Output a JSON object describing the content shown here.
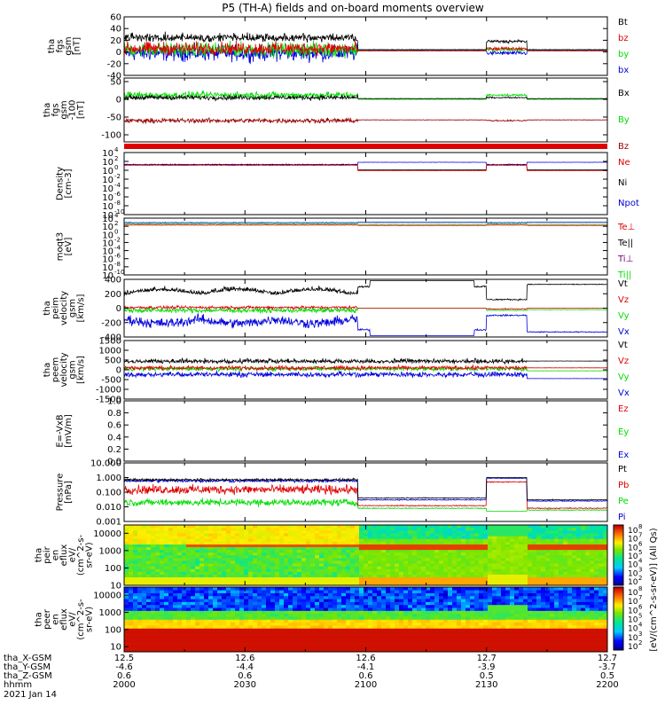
{
  "title": "P5 (TH-A) fields and on-board moments overview",
  "colors": {
    "black": "#000000",
    "red": "#e00000",
    "green": "#00dd00",
    "blue": "#0000dd",
    "darkred": "#990000",
    "purple": "#800080"
  },
  "chart_data": [
    {
      "type": "line",
      "name": "fgs-gsm",
      "ylabel": [
        "tha",
        "fgs",
        "gsm",
        "[nT]"
      ],
      "ylim": [
        -40,
        60
      ],
      "yticks": [
        "60",
        "40",
        "20",
        "0",
        "-20",
        "-40"
      ],
      "yticks_values": [
        60,
        40,
        20,
        0,
        -20,
        -40
      ],
      "legend": [
        {
          "text": "Bt",
          "color": "#000000"
        },
        {
          "text": "bz",
          "color": "#e00000"
        },
        {
          "text": "by",
          "color": "#00dd00"
        },
        {
          "text": "bx",
          "color": "#0000dd"
        }
      ]
    },
    {
      "type": "line",
      "name": "fgs-gsm-offset",
      "ylabel": [
        "tha",
        "fgs",
        "gsm",
        "-100",
        "[nT]"
      ],
      "ylim": [
        -120,
        60
      ],
      "yticks": [
        "50",
        "0",
        "-50",
        "-100"
      ],
      "yticks_values": [
        50,
        0,
        -50,
        -100
      ],
      "legend": [
        {
          "text": "Bx",
          "color": "#000000"
        },
        {
          "text": "By",
          "color": "#00dd00"
        },
        {
          "text": "Bz",
          "color": "#990000"
        }
      ]
    },
    {
      "type": "line",
      "name": "density",
      "ylabel": [
        "Density",
        "[cm-3]"
      ],
      "scale": "log",
      "ylim_exp": [
        -10,
        4
      ],
      "ytick_exps": [
        4,
        2,
        0,
        -2,
        -4,
        -6,
        -8,
        -10
      ],
      "legend": [
        {
          "text": "Ne",
          "color": "#e00000"
        },
        {
          "text": "Ni",
          "color": "#000000"
        },
        {
          "text": "Npot",
          "color": "#0000dd"
        }
      ]
    },
    {
      "type": "line",
      "name": "temperature",
      "ylabel": [
        "moqt3",
        "[eV]"
      ],
      "scale": "log",
      "ylim_exp": [
        -10,
        4
      ],
      "ytick_exps": [
        4,
        2,
        0,
        -2,
        -4,
        -6,
        -8,
        -10
      ],
      "legend": [
        {
          "text": "Te⊥",
          "color": "#e00000"
        },
        {
          "text": "Te||",
          "color": "#000000"
        },
        {
          "text": "Ti⊥",
          "color": "#800080"
        },
        {
          "text": "Ti||",
          "color": "#00dd00"
        }
      ]
    },
    {
      "type": "line",
      "name": "peim-velocity",
      "ylabel": [
        "tha",
        "peim",
        "velocity",
        "gsm",
        "[km/s]"
      ],
      "ylim": [
        -400,
        400
      ],
      "yticks": [
        "400",
        "200",
        "0",
        "-200",
        "-400"
      ],
      "yticks_values": [
        400,
        200,
        0,
        -200,
        -400
      ],
      "legend": [
        {
          "text": "Vt",
          "color": "#000000"
        },
        {
          "text": "Vz",
          "color": "#e00000"
        },
        {
          "text": "Vy",
          "color": "#00dd00"
        },
        {
          "text": "Vx",
          "color": "#0000dd"
        }
      ]
    },
    {
      "type": "line",
      "name": "peem-velocity",
      "ylabel": [
        "tha",
        "peem",
        "velocity",
        "gsm",
        "[km/s]"
      ],
      "ylim": [
        -1500,
        1500
      ],
      "yticks": [
        "1500",
        "1000",
        "500",
        "0",
        "-500",
        "-1000",
        "-1500"
      ],
      "yticks_values": [
        1500,
        1000,
        500,
        0,
        -500,
        -1000,
        -1500
      ],
      "legend": [
        {
          "text": "Vt",
          "color": "#000000"
        },
        {
          "text": "Vz",
          "color": "#e00000"
        },
        {
          "text": "Vy",
          "color": "#00dd00"
        },
        {
          "text": "Vx",
          "color": "#0000dd"
        }
      ]
    },
    {
      "type": "line",
      "name": "efield",
      "ylabel": [
        "E=-VxB",
        "[mV/m]"
      ],
      "ylim": [
        0,
        1
      ],
      "yticks": [
        "1.0",
        "0.8",
        "0.6",
        "0.4",
        "0.2",
        "0.0"
      ],
      "yticks_values": [
        1.0,
        0.8,
        0.6,
        0.4,
        0.2,
        0.0
      ],
      "legend": [
        {
          "text": "Ez",
          "color": "#e00000"
        },
        {
          "text": "Ey",
          "color": "#00dd00"
        },
        {
          "text": "Ex",
          "color": "#0000dd"
        }
      ]
    },
    {
      "type": "line",
      "name": "pressure",
      "ylabel": [
        "Pressure",
        "[nPa]"
      ],
      "scale": "log",
      "ylim": [
        0.001,
        10
      ],
      "yticks": [
        "10.000",
        "1.000",
        "0.100",
        "0.010",
        "0.001"
      ],
      "yticks_values": [
        10,
        1,
        0.1,
        0.01,
        0.001
      ],
      "legend": [
        {
          "text": "Pt",
          "color": "#000000"
        },
        {
          "text": "Pb",
          "color": "#e00000"
        },
        {
          "text": "Pe",
          "color": "#00dd00"
        },
        {
          "text": "Pi",
          "color": "#0000dd"
        }
      ]
    },
    {
      "type": "heatmap",
      "name": "peir-en-eflux",
      "ylabel": [
        "tha",
        "peir",
        "en",
        "eflux",
        "eV/",
        "(cm^2-s-",
        "sr-eV)"
      ],
      "scale": "log",
      "ylim": [
        10,
        30000
      ],
      "yticks": [
        "10000",
        "1000",
        "100",
        "10"
      ],
      "yticks_values": [
        10000,
        1000,
        100,
        10
      ]
    },
    {
      "type": "heatmap",
      "name": "peer-en-eflux",
      "ylabel": [
        "tha",
        "peer",
        "en",
        "eflux",
        "eV/",
        "(cm^2-s-",
        "sr-eV)"
      ],
      "scale": "log",
      "ylim": [
        5,
        30000
      ],
      "yticks": [
        "10000",
        "1000",
        "100",
        "10"
      ],
      "yticks_values": [
        10000,
        1000,
        100,
        10
      ]
    }
  ],
  "colorbar": {
    "label": "[eV/(cm^2-s-sr-eV)] (All Qs)",
    "tick_exps": [
      8,
      7,
      6,
      5,
      4,
      3,
      2
    ]
  },
  "xaxis": {
    "row_labels": [
      "tha_X-GSM",
      "tha_Y-GSM",
      "tha_Z-GSM",
      "hhmm",
      "2021 Jan 14"
    ],
    "columns": [
      {
        "x": "12.5",
        "y": "-4.6",
        "z": "0.6",
        "t": "2000"
      },
      {
        "x": "12.6",
        "y": "-4.4",
        "z": "0.6",
        "t": "2030"
      },
      {
        "x": "12.6",
        "y": "-4.1",
        "z": "0.6",
        "t": "2100"
      },
      {
        "x": "12.7",
        "y": "-3.9",
        "z": "0.5",
        "t": "2130"
      },
      {
        "x": "12.7",
        "y": "-3.7",
        "z": "0.5",
        "t": "2200"
      }
    ]
  },
  "series_text": {
    "t_range_minutes": [
      0,
      120
    ],
    "phase_changes_minutes": [
      58,
      90,
      100
    ]
  }
}
